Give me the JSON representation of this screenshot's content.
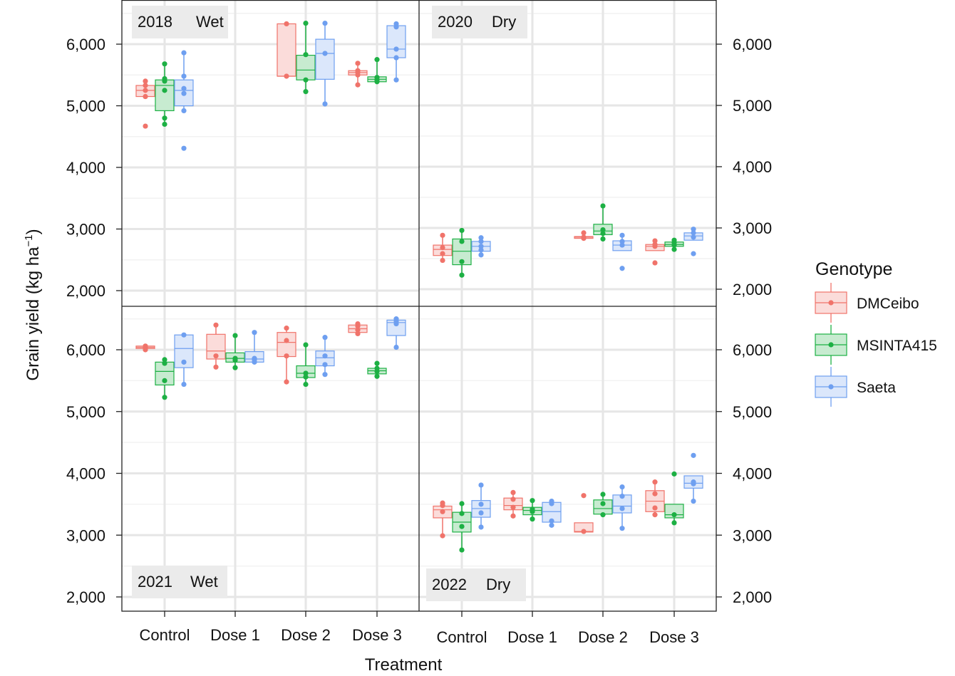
{
  "chart_data": {
    "type": "box",
    "xlabel": "Treatment",
    "ylabel": "Grain yield (kg ha",
    "ylabel_superscript": "−1",
    "ylabel_close": ")",
    "categories": [
      "Control",
      "Dose 1",
      "Dose 2",
      "Dose 3"
    ],
    "ylim": [
      1700,
      6900
    ],
    "yticks": [
      2000,
      3000,
      4000,
      5000,
      6000
    ],
    "ytick_labels": [
      "2,000",
      "3,000",
      "4,000",
      "5,000",
      "6,000"
    ],
    "grid": true,
    "legend": {
      "title": "Genotype",
      "placement": "right",
      "entries": [
        {
          "name": "DMCeibo",
          "color": "#f0736a"
        },
        {
          "name": "MSINTA415",
          "color": "#1db044"
        },
        {
          "name": "Saeta",
          "color": "#6e9ff0"
        }
      ]
    },
    "panels": [
      {
        "year": "2018",
        "condition": "Wet",
        "data": {
          "Control": [
            {
              "q1": 5150,
              "median": 5250,
              "q3": 5330,
              "whisker_low": 5150,
              "whisker_high": 5400,
              "points": [
                4670,
                5150,
                5250,
                5330,
                5400
              ]
            },
            {
              "q1": 4920,
              "median": 5330,
              "q3": 5420,
              "whisker_low": 4700,
              "whisker_high": 5680,
              "points": [
                4700,
                4800,
                5250,
                5400,
                5440,
                5680
              ]
            },
            {
              "q1": 5000,
              "median": 5250,
              "q3": 5420,
              "whisker_low": 4920,
              "whisker_high": 5860,
              "points": [
                4310,
                4920,
                5200,
                5280,
                5480,
                5860
              ]
            }
          ],
          "Dose 1": [],
          "Dose 2": [
            {
              "q1": 5480,
              "median": 5480,
              "q3": 6330,
              "whisker_low": 5480,
              "whisker_high": 6330,
              "points": [
                5480,
                6330
              ]
            },
            {
              "q1": 5420,
              "median": 5580,
              "q3": 5820,
              "whisker_low": 5230,
              "whisker_high": 6340,
              "points": [
                5230,
                5420,
                5830,
                6340
              ]
            },
            {
              "q1": 5430,
              "median": 5850,
              "q3": 6080,
              "whisker_low": 5030,
              "whisker_high": 6340,
              "points": [
                5030,
                5850,
                6340
              ]
            }
          ],
          "Dose 3": [
            {
              "q1": 5500,
              "median": 5540,
              "q3": 5570,
              "whisker_low": 5340,
              "whisker_high": 5690,
              "points": [
                5340,
                5500,
                5540,
                5570,
                5690
              ]
            },
            {
              "q1": 5390,
              "median": 5430,
              "q3": 5470,
              "whisker_low": 5390,
              "whisker_high": 5750,
              "points": [
                5390,
                5420,
                5460,
                5750
              ]
            },
            {
              "q1": 5780,
              "median": 5920,
              "q3": 6300,
              "whisker_low": 5420,
              "whisker_high": 6330,
              "points": [
                5420,
                5780,
                5920,
                6280,
                6330
              ]
            }
          ]
        }
      },
      {
        "year": "2020",
        "condition": "Dry",
        "data": {
          "Control": [
            {
              "q1": 2550,
              "median": 2650,
              "q3": 2720,
              "whisker_low": 2470,
              "whisker_high": 2880,
              "points": [
                2470,
                2580,
                2680,
                2880
              ]
            },
            {
              "q1": 2400,
              "median": 2620,
              "q3": 2820,
              "whisker_low": 2230,
              "whisker_high": 2960,
              "points": [
                2230,
                2450,
                2780,
                2960
              ]
            },
            {
              "q1": 2620,
              "median": 2700,
              "q3": 2780,
              "whisker_low": 2560,
              "whisker_high": 2840,
              "points": [
                2560,
                2640,
                2700,
                2780,
                2840
              ]
            }
          ],
          "Dose 1": [],
          "Dose 2": [
            {
              "q1": 2830,
              "median": 2850,
              "q3": 2860,
              "whisker_low": 2830,
              "whisker_high": 2920,
              "points": [
                2830,
                2850,
                2920
              ]
            },
            {
              "q1": 2890,
              "median": 2950,
              "q3": 3060,
              "whisker_low": 2820,
              "whisker_high": 3360,
              "points": [
                2820,
                2910,
                2970,
                3360
              ]
            },
            {
              "q1": 2630,
              "median": 2720,
              "q3": 2790,
              "whisker_low": 2630,
              "whisker_high": 2880,
              "points": [
                2340,
                2720,
                2780,
                2880
              ]
            }
          ],
          "Dose 3": [
            {
              "q1": 2630,
              "median": 2700,
              "q3": 2730,
              "whisker_low": 2630,
              "whisker_high": 2790,
              "points": [
                2430,
                2700,
                2730,
                2790
              ]
            },
            {
              "q1": 2700,
              "median": 2730,
              "q3": 2770,
              "whisker_low": 2650,
              "whisker_high": 2800,
              "points": [
                2650,
                2720,
                2760,
                2800
              ]
            },
            {
              "q1": 2800,
              "median": 2870,
              "q3": 2920,
              "whisker_low": 2800,
              "whisker_high": 2980,
              "points": [
                2580,
                2850,
                2920,
                2980
              ]
            }
          ]
        }
      },
      {
        "year": "2021",
        "condition": "Wet",
        "data": {
          "Control": [
            {
              "q1": 6020,
              "median": 6040,
              "q3": 6060,
              "whisker_low": 6000,
              "whisker_high": 6080,
              "points": [
                6000,
                6030,
                6060
              ]
            },
            {
              "q1": 5430,
              "median": 5650,
              "q3": 5800,
              "whisker_low": 5230,
              "whisker_high": 5840,
              "points": [
                5230,
                5500,
                5780,
                5840
              ]
            },
            {
              "q1": 5710,
              "median": 6020,
              "q3": 6240,
              "whisker_low": 5440,
              "whisker_high": 6240,
              "points": [
                5440,
                5800,
                6240
              ]
            }
          ],
          "Dose 1": [
            {
              "q1": 5850,
              "median": 5980,
              "q3": 6250,
              "whisker_low": 5720,
              "whisker_high": 6400,
              "points": [
                5720,
                5900,
                6400
              ]
            },
            {
              "q1": 5800,
              "median": 5860,
              "q3": 5950,
              "whisker_low": 5710,
              "whisker_high": 6230,
              "points": [
                5710,
                5830,
                5860,
                6230
              ]
            },
            {
              "q1": 5800,
              "median": 5850,
              "q3": 5970,
              "whisker_low": 5800,
              "whisker_high": 6280,
              "points": [
                5800,
                5840,
                5860,
                6280
              ]
            }
          ],
          "Dose 2": [
            {
              "q1": 5890,
              "median": 6120,
              "q3": 6280,
              "whisker_low": 5480,
              "whisker_high": 6350,
              "points": [
                5480,
                5900,
                6150,
                6350
              ]
            },
            {
              "q1": 5550,
              "median": 5620,
              "q3": 5740,
              "whisker_low": 5440,
              "whisker_high": 6080,
              "points": [
                5440,
                5560,
                5620,
                6080
              ]
            },
            {
              "q1": 5740,
              "median": 5870,
              "q3": 5980,
              "whisker_low": 5600,
              "whisker_high": 6200,
              "points": [
                5600,
                5760,
                5900,
                6200
              ]
            }
          ],
          "Dose 3": [
            {
              "q1": 6280,
              "median": 6340,
              "q3": 6400,
              "whisker_low": 6260,
              "whisker_high": 6420,
              "points": [
                6260,
                6320,
                6380,
                6420
              ]
            },
            {
              "q1": 5610,
              "median": 5660,
              "q3": 5700,
              "whisker_low": 5570,
              "whisker_high": 5780,
              "points": [
                5570,
                5650,
                5700,
                5780
              ]
            },
            {
              "q1": 6230,
              "median": 6440,
              "q3": 6480,
              "whisker_low": 6040,
              "whisker_high": 6500,
              "points": [
                6040,
                6420,
                6460,
                6500
              ]
            }
          ]
        }
      },
      {
        "year": "2022",
        "condition": "Dry",
        "data": {
          "Control": [
            {
              "q1": 3280,
              "median": 3410,
              "q3": 3470,
              "whisker_low": 2990,
              "whisker_high": 3520,
              "points": [
                2990,
                3380,
                3480,
                3520
              ]
            },
            {
              "q1": 3050,
              "median": 3210,
              "q3": 3370,
              "whisker_low": 2760,
              "whisker_high": 3510,
              "points": [
                2760,
                3140,
                3350,
                3510
              ]
            },
            {
              "q1": 3290,
              "median": 3430,
              "q3": 3560,
              "whisker_low": 3130,
              "whisker_high": 3810,
              "points": [
                3130,
                3360,
                3500,
                3810
              ]
            }
          ],
          "Dose 1": [
            {
              "q1": 3410,
              "median": 3480,
              "q3": 3600,
              "whisker_low": 3310,
              "whisker_high": 3690,
              "points": [
                3310,
                3450,
                3580,
                3690
              ]
            },
            {
              "q1": 3330,
              "median": 3400,
              "q3": 3450,
              "whisker_low": 3260,
              "whisker_high": 3560,
              "points": [
                3260,
                3380,
                3420,
                3560
              ]
            },
            {
              "q1": 3210,
              "median": 3380,
              "q3": 3530,
              "whisker_low": 3160,
              "whisker_high": 3550,
              "points": [
                3160,
                3230,
                3510,
                3550
              ]
            }
          ],
          "Dose 2": [
            {
              "q1": 3050,
              "median": 3060,
              "q3": 3200,
              "whisker_low": 3050,
              "whisker_high": 3200,
              "points": [
                3060,
                3640
              ]
            },
            {
              "q1": 3340,
              "median": 3430,
              "q3": 3570,
              "whisker_low": 3330,
              "whisker_high": 3660,
              "points": [
                3330,
                3510,
                3660
              ]
            },
            {
              "q1": 3360,
              "median": 3470,
              "q3": 3650,
              "whisker_low": 3110,
              "whisker_high": 3780,
              "points": [
                3110,
                3430,
                3630,
                3780
              ]
            }
          ],
          "Dose 3": [
            {
              "q1": 3380,
              "median": 3550,
              "q3": 3720,
              "whisker_low": 3330,
              "whisker_high": 3860,
              "points": [
                3330,
                3440,
                3670,
                3860
              ]
            },
            {
              "q1": 3280,
              "median": 3330,
              "q3": 3500,
              "whisker_low": 3200,
              "whisker_high": 3500,
              "points": [
                3200,
                3330,
                3990
              ]
            },
            {
              "q1": 3760,
              "median": 3840,
              "q3": 3960,
              "whisker_low": 3550,
              "whisker_high": 3960,
              "points": [
                3550,
                3830,
                3860,
                4290
              ]
            }
          ]
        }
      }
    ]
  }
}
